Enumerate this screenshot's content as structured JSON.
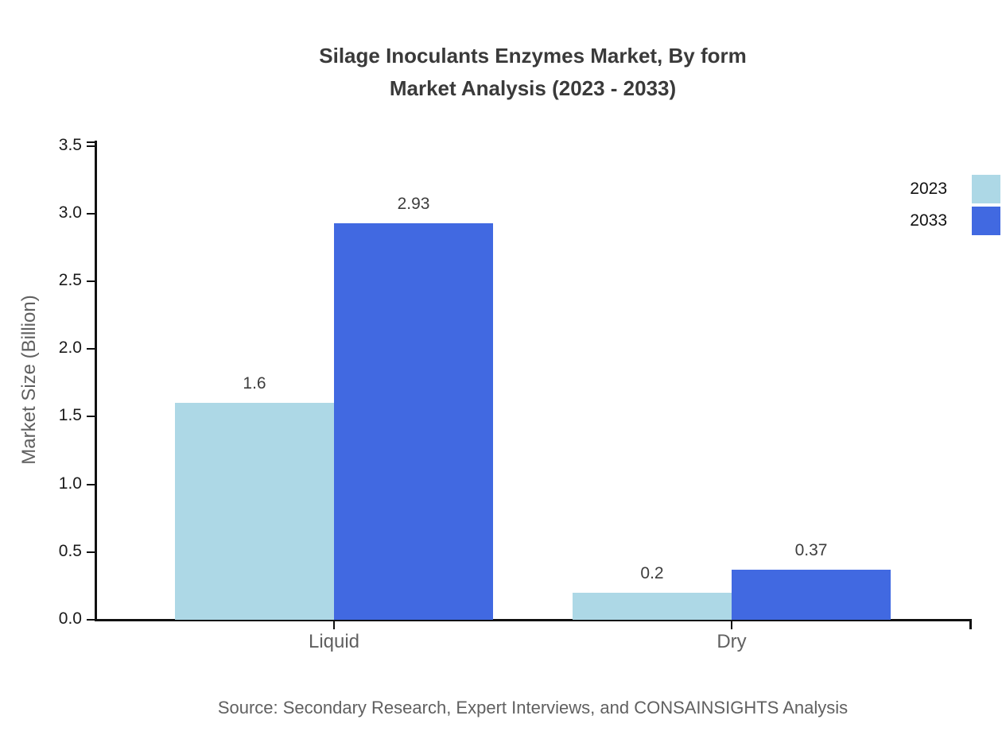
{
  "title": {
    "line1": "Silage Inoculants Enzymes Market, By form",
    "line2": "Market Analysis (2023 - 2033)"
  },
  "chart_data": {
    "type": "bar",
    "categories": [
      "Liquid",
      "Dry"
    ],
    "series": [
      {
        "name": "2023",
        "color": "#ADD8E6",
        "values": [
          1.6,
          0.2
        ]
      },
      {
        "name": "2033",
        "color": "#4169E1",
        "values": [
          2.93,
          0.37
        ]
      }
    ],
    "title": "Silage Inoculants Enzymes Market, By form Market Analysis (2023 - 2033)",
    "xlabel": "",
    "ylabel": "Market Size (Billion)",
    "ylim": [
      0,
      3.5
    ],
    "yticks": [
      "0.0",
      "0.5",
      "1.0",
      "1.5",
      "2.0",
      "2.5",
      "3.0",
      "3.5"
    ],
    "grid": false,
    "legend_position": "top-right"
  },
  "source_note": "Source: Secondary Research, Expert Interviews, and CONSAINSIGHTS Analysis",
  "colors": {
    "series_2023": "#ADD8E6",
    "series_2033": "#4169E1",
    "axis": "#111111",
    "title_text": "#3a3a3a",
    "muted_text": "#606060",
    "tick_text": "#1a1a1a",
    "value_text": "#3d3d3d"
  }
}
